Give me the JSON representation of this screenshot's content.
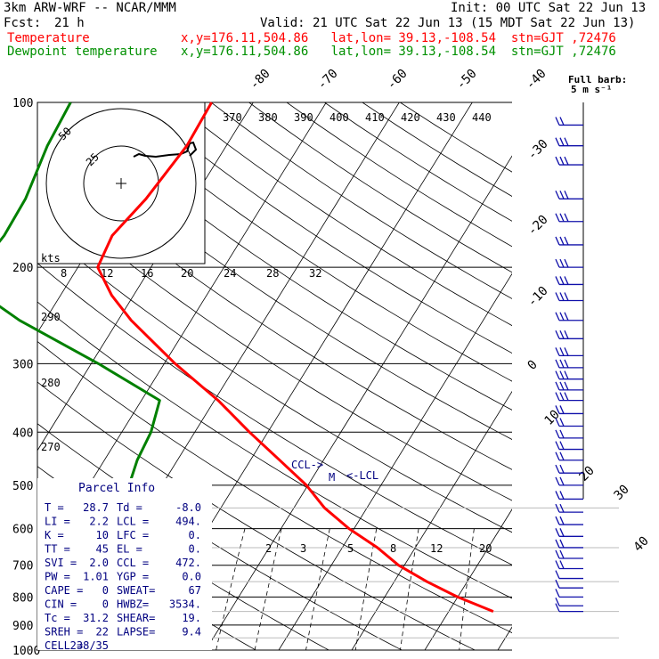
{
  "header": {
    "model": "3km ARW-WRF -- NCAR/MMM",
    "init": "Init: 00 UTC Sat 22 Jun 13",
    "fcst_label": "Fcst:",
    "fcst_value": "21 h",
    "valid": "Valid: 21 UTC Sat 22 Jun 13 (15 MDT Sat 22 Jun 13)",
    "temp_label": "Temperature",
    "temp_info": "x,y=176.11,504.86   lat,lon= 39.13,-108.54  stn=GJT ,72476",
    "dew_label": "Dewpoint temperature",
    "dew_info": "x,y=176.11,504.86   lat,lon= 39.13,-108.54  stn=GJT ,72476"
  },
  "colors": {
    "temperature": "#ff0000",
    "dewpoint": "#008000",
    "parcel": "#000080",
    "barbs": "#1010aa",
    "header_red": "#ff0000",
    "header_green": "#009000"
  },
  "wind_key": {
    "line1": "Full barb:",
    "line2": "5 m s⁻¹"
  },
  "hodograph": {
    "unit": "kts",
    "ring_labels": [
      "50",
      "25"
    ]
  },
  "parcel_info": {
    "title": "Parcel Info",
    "rows": [
      [
        "T  =",
        "28.7",
        "Td =",
        "-8.0"
      ],
      [
        "LI =",
        "2.2",
        "LCL =",
        "494."
      ],
      [
        "K  =",
        "10",
        "LFC =",
        "0."
      ],
      [
        "TT =",
        "45",
        "EL =",
        "0."
      ],
      [
        "SVI =",
        "2.0",
        "CCL =",
        "472."
      ],
      [
        "PW =",
        "1.01",
        "YGP =",
        "0.0"
      ],
      [
        "CAPE =",
        "0",
        "SWEAT=",
        "67"
      ],
      [
        "CIN =",
        "0",
        "HWBZ=",
        "3534."
      ],
      [
        "Tc =",
        "31.2",
        "SHEAR=",
        "19."
      ],
      [
        "SREH =",
        "22",
        "LAPSE=",
        "9.4"
      ],
      [
        "CELL =",
        "238/35",
        "",
        ""
      ]
    ]
  },
  "level_markers": [
    "CCL->",
    "M",
    "<-LCL"
  ],
  "chart_data": {
    "type": "line",
    "chart_kind": "skew-T log-P",
    "pressure_axis_hPa": [
      100,
      200,
      300,
      400,
      500,
      600,
      700,
      800,
      900,
      1000
    ],
    "pressure_labels": [
      "100",
      "200",
      "300",
      "400",
      "500",
      "600",
      "700",
      "800",
      "900",
      "1000"
    ],
    "isotherm_labels_C": [
      "-80",
      "-70",
      "-60",
      "-50",
      "-40",
      "-30",
      "-20",
      "-10",
      "0",
      "10",
      "20",
      "30",
      "40"
    ],
    "theta_labels_K": [
      "370",
      "380",
      "390",
      "400",
      "410",
      "420",
      "430",
      "440",
      "290",
      "280",
      "270"
    ],
    "mixing_ratio_labels": [
      "2",
      "3",
      "5",
      "8",
      "12",
      "20"
    ],
    "hodo_speed_labels": [
      "8",
      "12",
      "16",
      "20",
      "24",
      "28",
      "32"
    ],
    "series": [
      {
        "name": "Temperature",
        "color": "#ff0000",
        "points": [
          [
            100,
            -55.7
          ],
          [
            120,
            -55.4
          ],
          [
            150,
            -56.5
          ],
          [
            175,
            -58
          ],
          [
            200,
            -57.3
          ],
          [
            225,
            -53
          ],
          [
            250,
            -48.2
          ],
          [
            300,
            -38.5
          ],
          [
            350,
            -29.5
          ],
          [
            400,
            -22.5
          ],
          [
            450,
            -16
          ],
          [
            500,
            -10.2
          ],
          [
            550,
            -5.8
          ],
          [
            600,
            -0.7
          ],
          [
            650,
            4.8
          ],
          [
            700,
            9.2
          ],
          [
            750,
            14.5
          ],
          [
            800,
            20
          ],
          [
            850,
            26.1
          ]
        ]
      },
      {
        "name": "Dewpoint temperature",
        "color": "#008000",
        "points": [
          [
            100,
            -75
          ],
          [
            120,
            -74.5
          ],
          [
            150,
            -73
          ],
          [
            175,
            -72.8
          ],
          [
            200,
            -73.5
          ],
          [
            225,
            -70.5
          ],
          [
            250,
            -63.5
          ],
          [
            300,
            -49
          ],
          [
            350,
            -37.5
          ],
          [
            400,
            -36
          ],
          [
            450,
            -35.5
          ],
          [
            500,
            -34.5
          ],
          [
            550,
            -29.5
          ],
          [
            600,
            -25.5
          ],
          [
            650,
            -22.2
          ],
          [
            700,
            -20.5
          ],
          [
            750,
            -20.2
          ],
          [
            800,
            -20.5
          ],
          [
            850,
            -20.6
          ]
        ]
      }
    ],
    "winds": [
      {
        "p": 110,
        "barbs": 2
      },
      {
        "p": 120,
        "barbs": 3
      },
      {
        "p": 130,
        "barbs": 3
      },
      {
        "p": 150,
        "barbs": 3
      },
      {
        "p": 165,
        "barbs": 3
      },
      {
        "p": 182,
        "barbs": 3
      },
      {
        "p": 200,
        "barbs": 3
      },
      {
        "p": 215,
        "barbs": 3
      },
      {
        "p": 230,
        "barbs": 3
      },
      {
        "p": 250,
        "barbs": 3
      },
      {
        "p": 270,
        "barbs": 3
      },
      {
        "p": 290,
        "barbs": 3
      },
      {
        "p": 305,
        "barbs": 3
      },
      {
        "p": 320,
        "barbs": 3
      },
      {
        "p": 335,
        "barbs": 3
      },
      {
        "p": 350,
        "barbs": 3
      },
      {
        "p": 370,
        "barbs": 2
      },
      {
        "p": 390,
        "barbs": 2
      },
      {
        "p": 410,
        "barbs": 2
      },
      {
        "p": 430,
        "barbs": 2
      },
      {
        "p": 450,
        "barbs": 2
      },
      {
        "p": 475,
        "barbs": 2
      },
      {
        "p": 500,
        "barbs": 2
      },
      {
        "p": 530,
        "barbs": 2
      },
      {
        "p": 560,
        "barbs": 2
      },
      {
        "p": 590,
        "barbs": 2
      },
      {
        "p": 620,
        "barbs": 2
      },
      {
        "p": 650,
        "barbs": 2
      },
      {
        "p": 680,
        "barbs": 2
      },
      {
        "p": 710,
        "barbs": 2
      },
      {
        "p": 740,
        "barbs": 1
      },
      {
        "p": 770,
        "barbs": 1
      },
      {
        "p": 800,
        "barbs": 1
      },
      {
        "p": 830,
        "barbs": 1
      },
      {
        "p": 850,
        "barbs": 1
      }
    ]
  }
}
